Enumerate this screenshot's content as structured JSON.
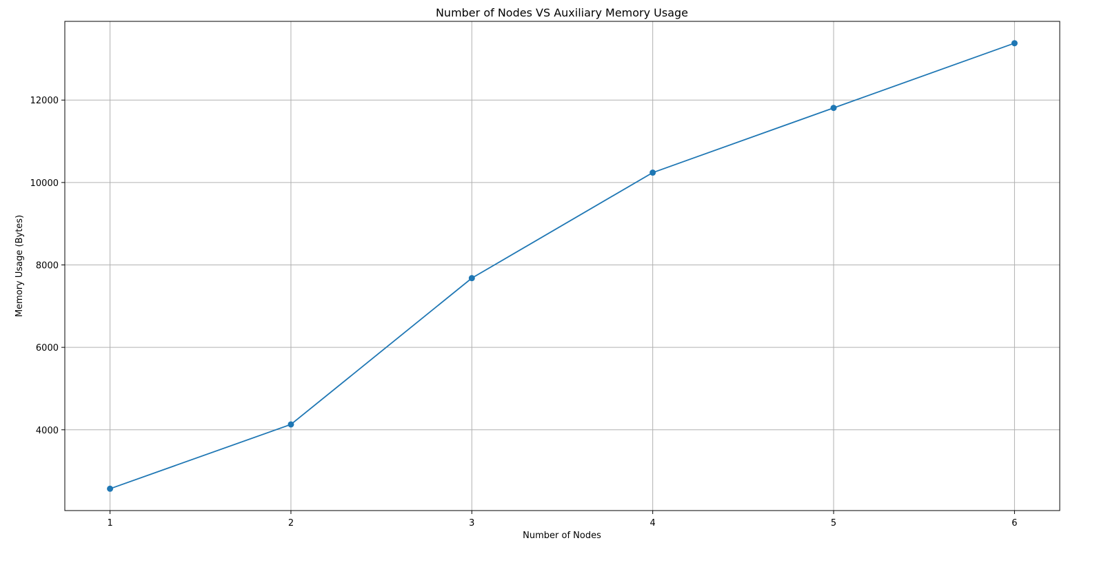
{
  "chart_data": {
    "type": "line",
    "title": "Number of Nodes VS Auxiliary Memory Usage",
    "xlabel": "Number of Nodes",
    "ylabel": "Memory Usage (Bytes)",
    "x": [
      1,
      2,
      3,
      4,
      5,
      6
    ],
    "x_tick_labels": [
      "1",
      "2",
      "3",
      "4",
      "5",
      "6"
    ],
    "y_ticks": [
      4000,
      6000,
      8000,
      10000,
      12000
    ],
    "y_tick_labels": [
      "4000",
      "6000",
      "8000",
      "10000",
      "12000"
    ],
    "xlim": [
      0.75,
      6.25
    ],
    "ylim": [
      2040,
      13910
    ],
    "grid": true,
    "marker": "circle",
    "series": [
      {
        "color": "#1f77b4",
        "values": [
          2570,
          4130,
          7680,
          10240,
          11810,
          13380
        ]
      }
    ]
  }
}
